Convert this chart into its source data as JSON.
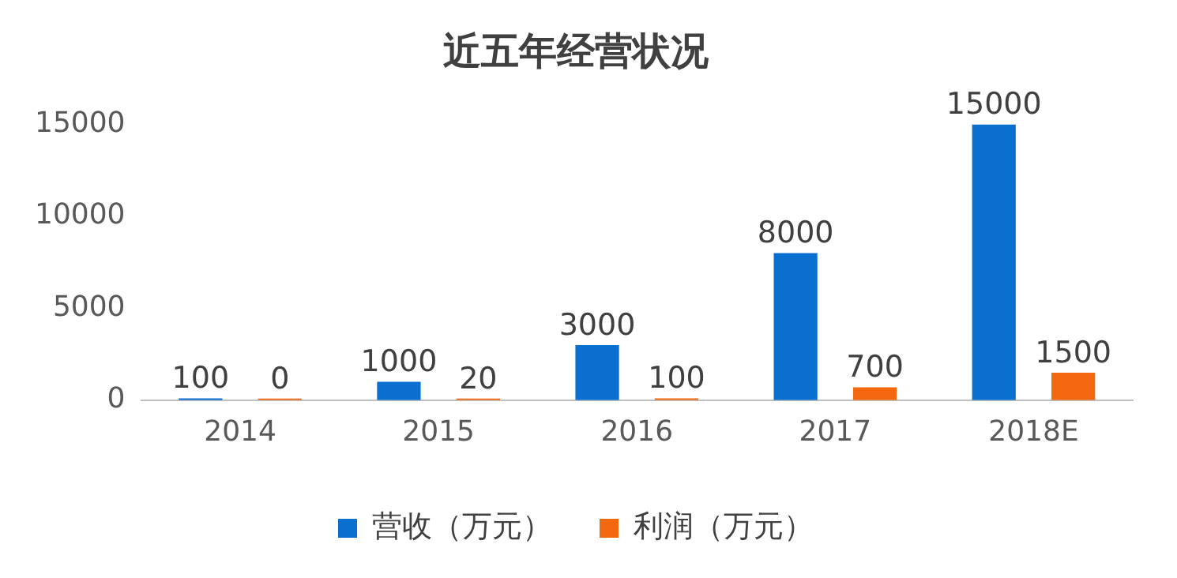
{
  "chart_data": {
    "type": "bar",
    "title": "近五年经营状况",
    "categories": [
      "2014",
      "2015",
      "2016",
      "2017",
      "2018E"
    ],
    "series": [
      {
        "name": "营收（万元）",
        "color": "#0a6fcf",
        "values": [
          100,
          1000,
          3000,
          8000,
          15000
        ]
      },
      {
        "name": "利润（万元）",
        "color": "#f3680f",
        "values": [
          0,
          20,
          100,
          700,
          1500
        ]
      }
    ],
    "ylim": [
      0,
      15000
    ],
    "yticks": [
      0,
      5000,
      10000,
      15000
    ],
    "grid": false,
    "legend": "bottom",
    "data_labels": true
  }
}
